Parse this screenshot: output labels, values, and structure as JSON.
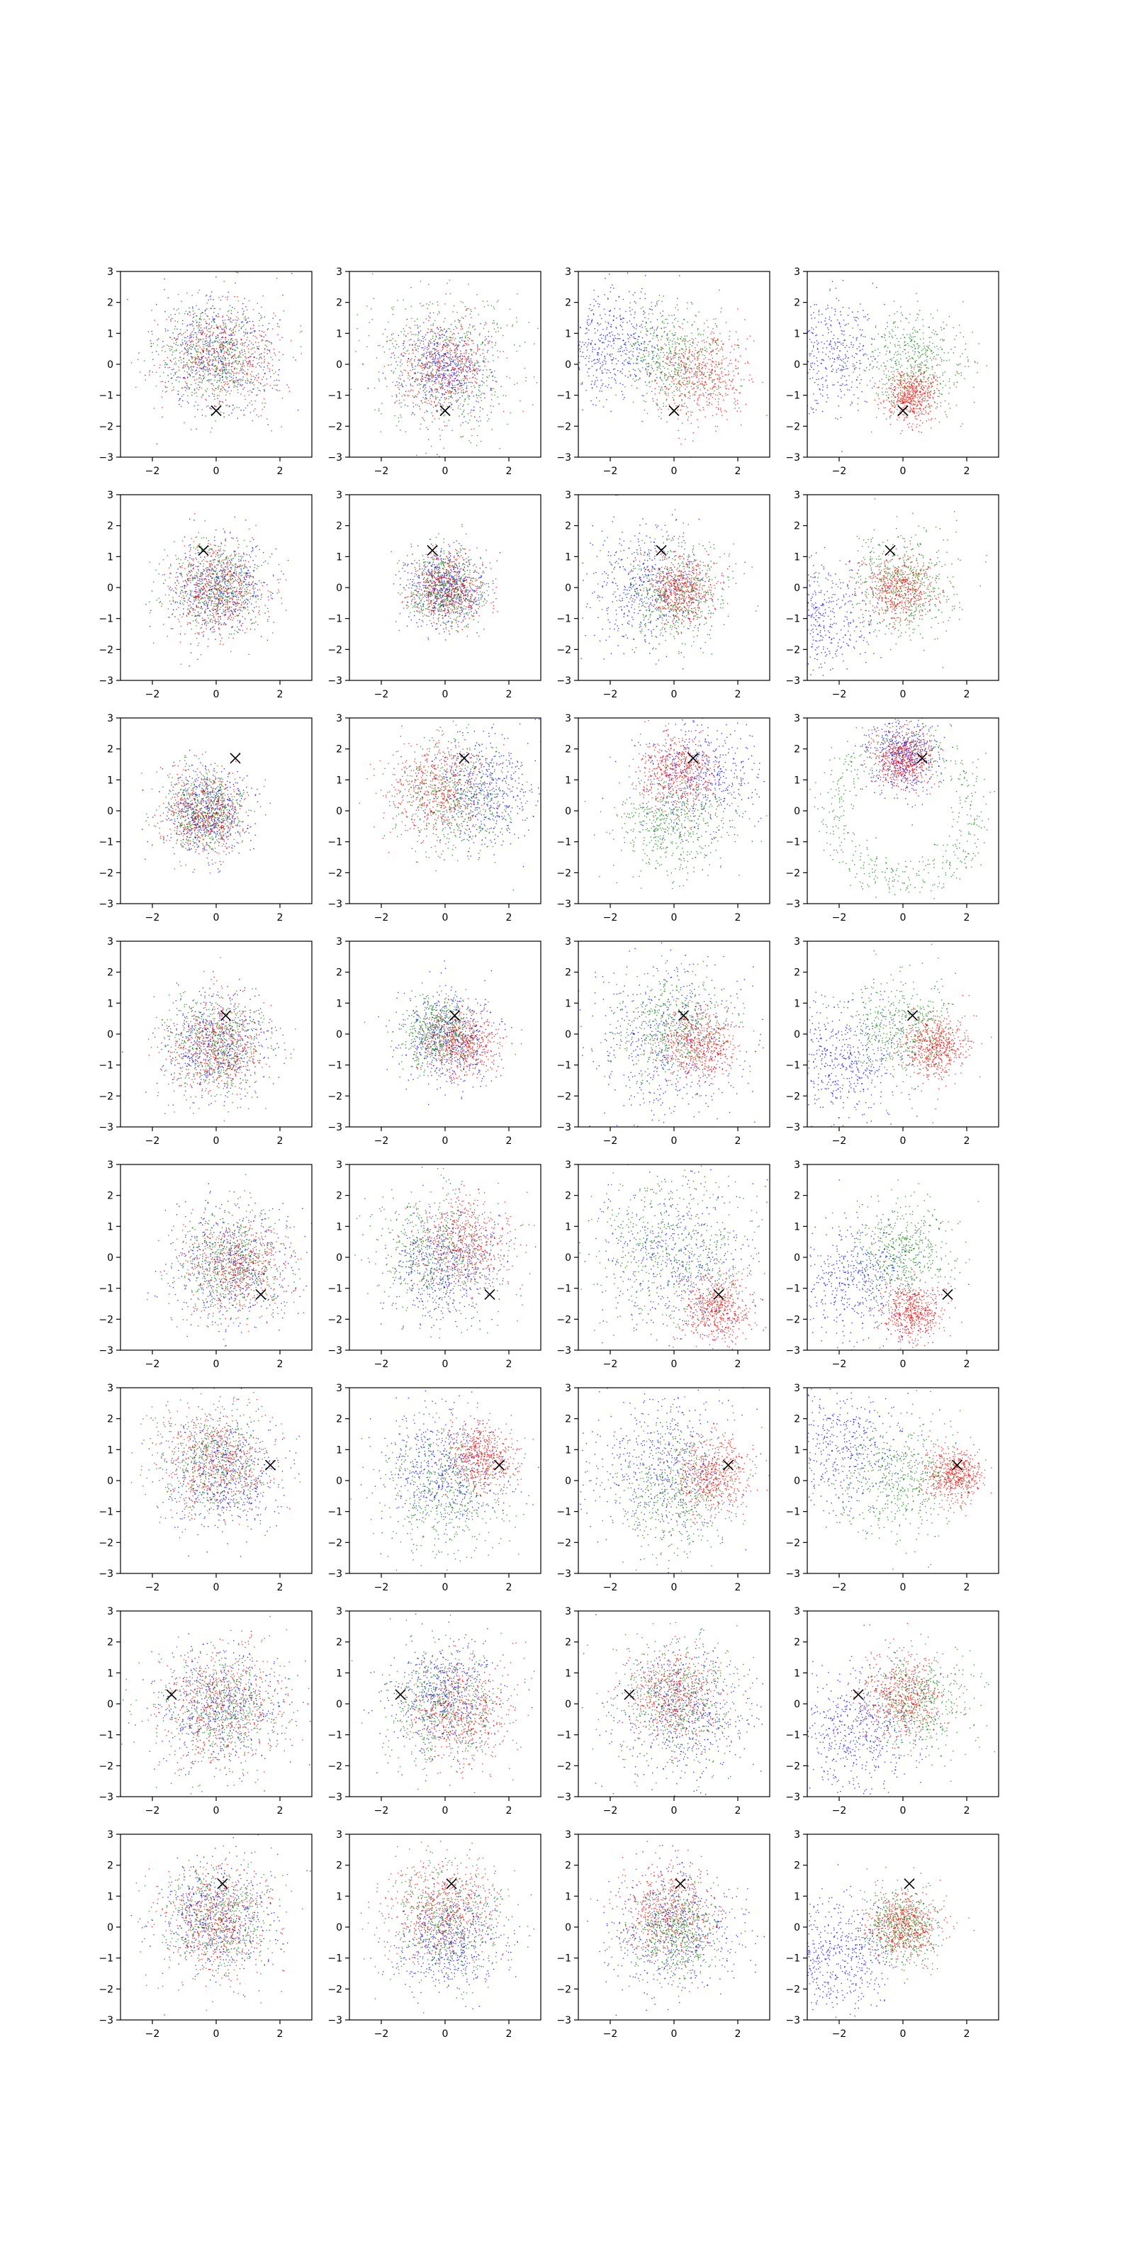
{
  "figure": {
    "rows": 8,
    "cols": 4,
    "xlim": [
      -3,
      3
    ],
    "ylim": [
      -3,
      3
    ],
    "xticks": [
      -2,
      0,
      2
    ],
    "yticks": [
      -3,
      -2,
      -1,
      0,
      1,
      2,
      3
    ],
    "xtick_labels": [
      "−2",
      "0",
      "2"
    ],
    "ytick_labels": [
      "−3",
      "−2",
      "−1",
      "0",
      "1",
      "2",
      "3"
    ],
    "colors": {
      "blue": "#0000ff",
      "green": "#008000",
      "red": "#ff0000",
      "marker": "#000000"
    }
  },
  "chart_data": {
    "type": "scatter",
    "description_grid": "8x4 grid of scatter subplots; each row shares one target point marked with an x; columns show the evolution of three point clouds (blue, green, red)",
    "series_names": [
      "blue",
      "green",
      "red"
    ],
    "grid": true,
    "xlim": [
      -3,
      3
    ],
    "ylim": [
      -3,
      3
    ],
    "rows": [
      {
        "marker": [
          0.0,
          -1.5
        ],
        "panels": [
          {
            "blue": {
              "center": [
                0.0,
                0.3
              ],
              "spread": 0.95
            },
            "green": {
              "center": [
                0.0,
                0.3
              ],
              "spread": 0.85
            },
            "red": {
              "center": [
                0.1,
                0.3
              ],
              "spread": 0.9
            }
          },
          {
            "blue": {
              "center": [
                0.0,
                -0.1
              ],
              "spread": 0.7
            },
            "green": {
              "center": [
                0.0,
                0.0
              ],
              "spread": 1.25
            },
            "red": {
              "center": [
                -0.1,
                -0.1
              ],
              "spread": 0.75
            }
          },
          {
            "blue": {
              "center": [
                -2.0,
                0.7
              ],
              "spread": 0.9
            },
            "green": {
              "center": [
                0.0,
                0.2
              ],
              "spread": 0.85
            },
            "red": {
              "center": [
                0.8,
                -0.3
              ],
              "spread": 0.75
            }
          },
          {
            "blue": {
              "center": [
                -2.6,
                0.4
              ],
              "spread": 1.0
            },
            "green": {
              "center": [
                0.3,
                0.1
              ],
              "spread": 0.85
            },
            "red": {
              "center": [
                0.2,
                -1.0
              ],
              "spread": 0.45
            }
          }
        ]
      },
      {
        "marker": [
          -0.4,
          1.2
        ],
        "panels": [
          {
            "blue": {
              "center": [
                0.0,
                0.0
              ],
              "spread": 0.75
            },
            "green": {
              "center": [
                0.0,
                0.0
              ],
              "spread": 0.7
            },
            "red": {
              "center": [
                0.0,
                0.0
              ],
              "spread": 0.75
            }
          },
          {
            "blue": {
              "center": [
                0.0,
                0.0
              ],
              "spread": 0.6
            },
            "green": {
              "center": [
                0.0,
                0.0
              ],
              "spread": 0.6
            },
            "red": {
              "center": [
                0.0,
                0.0
              ],
              "spread": 0.6
            }
          },
          {
            "blue": {
              "center": [
                -0.8,
                0.0
              ],
              "spread": 0.95
            },
            "green": {
              "center": [
                0.0,
                -0.1
              ],
              "spread": 0.85
            },
            "red": {
              "center": [
                0.2,
                0.0
              ],
              "spread": 0.55
            }
          },
          {
            "blue": {
              "center": [
                -2.8,
                -1.0
              ],
              "spread": 0.9
            },
            "green": {
              "center": [
                0.0,
                0.1
              ],
              "spread": 0.85
            },
            "red": {
              "center": [
                -0.1,
                0.0
              ],
              "spread": 0.55
            }
          }
        ]
      },
      {
        "marker": [
          0.6,
          1.7
        ],
        "panels": [
          {
            "blue": {
              "center": [
                -0.3,
                0.0
              ],
              "spread": 0.7
            },
            "green": {
              "center": [
                -0.4,
                0.0
              ],
              "spread": 0.65
            },
            "red": {
              "center": [
                -0.4,
                0.0
              ],
              "spread": 0.65
            }
          },
          {
            "blue": {
              "center": [
                1.2,
                0.6
              ],
              "spread": 0.9
            },
            "green": {
              "center": [
                0.3,
                0.4
              ],
              "spread": 0.9
            },
            "red": {
              "center": [
                -0.3,
                0.7
              ],
              "spread": 0.8
            }
          },
          {
            "blue": {
              "center": [
                0.8,
                1.2
              ],
              "spread": 1.0
            },
            "green": {
              "center": [
                -0.1,
                -0.3
              ],
              "spread": 0.9
            },
            "red": {
              "center": [
                0.1,
                1.3
              ],
              "spread": 0.6
            }
          },
          {
            "blue": {
              "center": [
                0.0,
                1.8
              ],
              "spread": 0.6
            },
            "green": {
              "center": [
                0.0,
                0.0
              ],
              "spread": 2.2,
              "ring": true
            },
            "red": {
              "center": [
                0.0,
                1.7
              ],
              "spread": 0.45
            }
          }
        ]
      },
      {
        "marker": [
          0.3,
          0.6
        ],
        "panels": [
          {
            "blue": {
              "center": [
                0.0,
                -0.3
              ],
              "spread": 0.85
            },
            "green": {
              "center": [
                0.0,
                -0.4
              ],
              "spread": 0.8
            },
            "red": {
              "center": [
                0.0,
                -0.4
              ],
              "spread": 0.75
            }
          },
          {
            "blue": {
              "center": [
                0.1,
                -0.1
              ],
              "spread": 0.75
            },
            "green": {
              "center": [
                -0.2,
                0.1
              ],
              "spread": 0.6
            },
            "red": {
              "center": [
                0.5,
                -0.3
              ],
              "spread": 0.55
            }
          },
          {
            "blue": {
              "center": [
                -0.3,
                -0.3
              ],
              "spread": 1.3
            },
            "green": {
              "center": [
                0.0,
                0.2
              ],
              "spread": 0.85
            },
            "red": {
              "center": [
                0.7,
                -0.3
              ],
              "spread": 0.6
            }
          },
          {
            "blue": {
              "center": [
                -1.8,
                -0.8
              ],
              "spread": 1.0
            },
            "green": {
              "center": [
                0.0,
                0.1
              ],
              "spread": 0.85
            },
            "red": {
              "center": [
                1.0,
                -0.4
              ],
              "spread": 0.5
            }
          }
        ]
      },
      {
        "marker": [
          1.4,
          -1.2
        ],
        "panels": [
          {
            "blue": {
              "center": [
                0.4,
                -0.2
              ],
              "spread": 1.0
            },
            "green": {
              "center": [
                0.5,
                -0.2
              ],
              "spread": 0.85
            },
            "red": {
              "center": [
                0.7,
                -0.3
              ],
              "spread": 0.8
            }
          },
          {
            "blue": {
              "center": [
                0.0,
                -0.2
              ],
              "spread": 0.9
            },
            "green": {
              "center": [
                -0.3,
                0.1
              ],
              "spread": 1.0
            },
            "red": {
              "center": [
                0.6,
                0.5
              ],
              "spread": 0.75
            }
          },
          {
            "blue": {
              "center": [
                0.0,
                0.0
              ],
              "spread": 1.35
            },
            "green": {
              "center": [
                0.0,
                0.2
              ],
              "spread": 1.3
            },
            "red": {
              "center": [
                1.3,
                -1.6
              ],
              "spread": 0.55
            }
          },
          {
            "blue": {
              "center": [
                -1.5,
                -0.8
              ],
              "spread": 1.0
            },
            "green": {
              "center": [
                0.0,
                0.2
              ],
              "spread": 0.8
            },
            "red": {
              "center": [
                0.3,
                -1.8
              ],
              "spread": 0.45
            }
          }
        ]
      },
      {
        "marker": [
          1.7,
          0.5
        ],
        "panels": [
          {
            "blue": {
              "center": [
                0.2,
                0.3
              ],
              "spread": 0.95
            },
            "green": {
              "center": [
                0.0,
                0.6
              ],
              "spread": 0.85
            },
            "red": {
              "center": [
                0.0,
                0.6
              ],
              "spread": 0.85
            }
          },
          {
            "blue": {
              "center": [
                0.0,
                0.4
              ],
              "spread": 1.0
            },
            "green": {
              "center": [
                0.0,
                -0.3
              ],
              "spread": 1.1
            },
            "red": {
              "center": [
                1.1,
                0.8
              ],
              "spread": 0.55
            }
          },
          {
            "blue": {
              "center": [
                -0.3,
                0.5
              ],
              "spread": 1.25
            },
            "green": {
              "center": [
                0.0,
                -0.3
              ],
              "spread": 1.05
            },
            "red": {
              "center": [
                1.2,
                0.2
              ],
              "spread": 0.6
            }
          },
          {
            "blue": {
              "center": [
                -2.0,
                1.0
              ],
              "spread": 1.1
            },
            "green": {
              "center": [
                0.0,
                0.0
              ],
              "spread": 0.9
            },
            "red": {
              "center": [
                1.6,
                0.2
              ],
              "spread": 0.45
            }
          }
        ]
      },
      {
        "marker": [
          -1.4,
          0.3
        ],
        "panels": [
          {
            "blue": {
              "center": [
                0.2,
                -0.1
              ],
              "spread": 1.0
            },
            "green": {
              "center": [
                0.2,
                -0.1
              ],
              "spread": 0.95
            },
            "red": {
              "center": [
                0.2,
                0.0
              ],
              "spread": 0.95
            }
          },
          {
            "blue": {
              "center": [
                0.0,
                0.3
              ],
              "spread": 0.9
            },
            "green": {
              "center": [
                0.0,
                0.0
              ],
              "spread": 0.9
            },
            "red": {
              "center": [
                0.4,
                -0.3
              ],
              "spread": 0.85
            }
          },
          {
            "blue": {
              "center": [
                0.3,
                -0.3
              ],
              "spread": 1.1
            },
            "green": {
              "center": [
                0.0,
                0.1
              ],
              "spread": 0.95
            },
            "red": {
              "center": [
                0.0,
                0.3
              ],
              "spread": 0.75
            }
          },
          {
            "blue": {
              "center": [
                -1.5,
                -0.8
              ],
              "spread": 1.0
            },
            "green": {
              "center": [
                0.4,
                0.0
              ],
              "spread": 0.85
            },
            "red": {
              "center": [
                0.0,
                0.3
              ],
              "spread": 0.65
            }
          }
        ]
      },
      {
        "marker": [
          0.2,
          1.4
        ],
        "panels": [
          {
            "blue": {
              "center": [
                0.0,
                0.3
              ],
              "spread": 0.9
            },
            "green": {
              "center": [
                0.0,
                0.3
              ],
              "spread": 0.85
            },
            "red": {
              "center": [
                0.0,
                0.3
              ],
              "spread": 0.85
            }
          },
          {
            "blue": {
              "center": [
                0.2,
                -0.4
              ],
              "spread": 0.85
            },
            "green": {
              "center": [
                0.0,
                0.2
              ],
              "spread": 1.0
            },
            "red": {
              "center": [
                -0.1,
                0.6
              ],
              "spread": 0.85
            }
          },
          {
            "blue": {
              "center": [
                0.0,
                -0.2
              ],
              "spread": 1.05
            },
            "green": {
              "center": [
                0.0,
                -0.2
              ],
              "spread": 0.7
            },
            "red": {
              "center": [
                -0.2,
                0.5
              ],
              "spread": 0.75
            }
          },
          {
            "blue": {
              "center": [
                -2.0,
                -0.9
              ],
              "spread": 0.9
            },
            "green": {
              "center": [
                0.0,
                0.0
              ],
              "spread": 0.65
            },
            "red": {
              "center": [
                0.0,
                0.1
              ],
              "spread": 0.55
            }
          }
        ]
      }
    ]
  }
}
